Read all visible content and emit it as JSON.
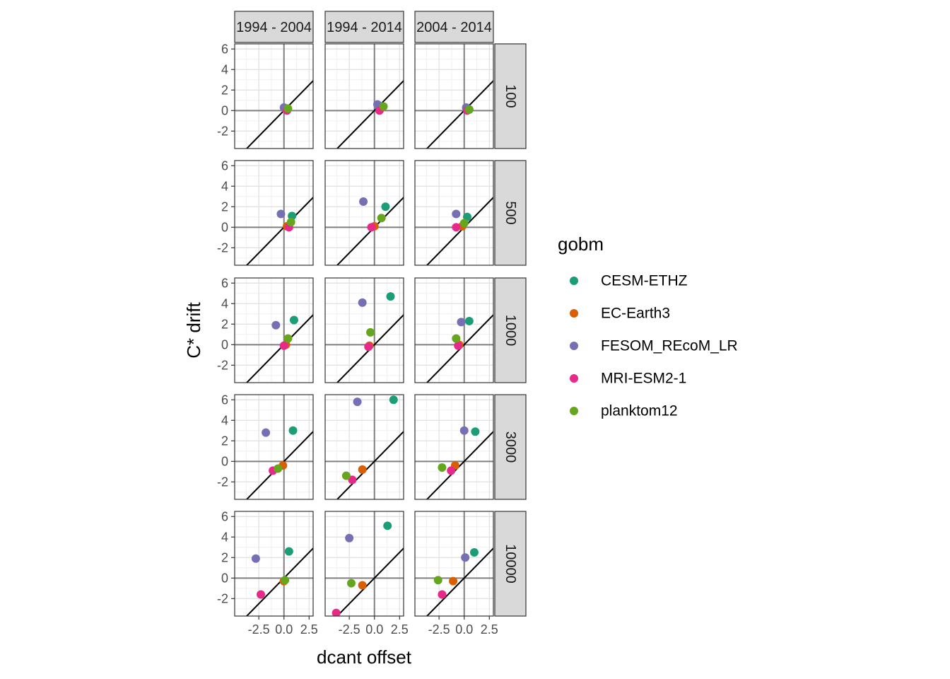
{
  "chart_data": {
    "type": "scatter",
    "xlabel": "dcant offset",
    "ylabel": "C* drift",
    "x_ticks": [
      -2.5,
      0.0,
      2.5
    ],
    "x_tick_labels": [
      "-2.5",
      "0.0",
      "2.5"
    ],
    "y_ticks": [
      -2,
      0,
      2,
      4,
      6
    ],
    "y_tick_labels": [
      "-2",
      "0",
      "2",
      "4",
      "6"
    ],
    "xlim": [
      -4.9,
      2.9
    ],
    "ylim": [
      -3.7,
      6.5
    ],
    "facet_columns": [
      "1994 - 2004",
      "1994 - 2014",
      "2004 - 2014"
    ],
    "facet_rows": [
      "100",
      "500",
      "1000",
      "3000",
      "10000"
    ],
    "reference_lines": [
      "x = 0",
      "y = 0",
      "y = x"
    ],
    "grid": true,
    "legend_position": "right",
    "legend_title": "gobm",
    "series": [
      {
        "name": "CESM-ETHZ",
        "color": "#1B9E77"
      },
      {
        "name": "EC-Earth3",
        "color": "#D95F02"
      },
      {
        "name": "FESOM_REcoM_LR",
        "color": "#7570B3"
      },
      {
        "name": "MRI-ESM2-1",
        "color": "#E7298A"
      },
      {
        "name": "planktom12",
        "color": "#66A61E"
      }
    ],
    "points": [
      {
        "row": 0,
        "col": 0,
        "series": "CESM-ETHZ",
        "x": 0.3,
        "y": 0.2
      },
      {
        "row": 0,
        "col": 0,
        "series": "EC-Earth3",
        "x": 0.2,
        "y": 0.1
      },
      {
        "row": 0,
        "col": 0,
        "series": "FESOM_REcoM_LR",
        "x": 0.0,
        "y": 0.3
      },
      {
        "row": 0,
        "col": 0,
        "series": "MRI-ESM2-1",
        "x": 0.3,
        "y": 0.0
      },
      {
        "row": 0,
        "col": 0,
        "series": "planktom12",
        "x": 0.4,
        "y": 0.2
      },
      {
        "row": 0,
        "col": 1,
        "series": "CESM-ETHZ",
        "x": 0.8,
        "y": 0.4
      },
      {
        "row": 0,
        "col": 1,
        "series": "EC-Earth3",
        "x": 0.6,
        "y": 0.2
      },
      {
        "row": 0,
        "col": 1,
        "series": "FESOM_REcoM_LR",
        "x": 0.3,
        "y": 0.6
      },
      {
        "row": 0,
        "col": 1,
        "series": "MRI-ESM2-1",
        "x": 0.5,
        "y": 0.0
      },
      {
        "row": 0,
        "col": 1,
        "series": "planktom12",
        "x": 0.9,
        "y": 0.4
      },
      {
        "row": 0,
        "col": 2,
        "series": "CESM-ETHZ",
        "x": 0.5,
        "y": 0.1
      },
      {
        "row": 0,
        "col": 2,
        "series": "EC-Earth3",
        "x": 0.3,
        "y": 0.1
      },
      {
        "row": 0,
        "col": 2,
        "series": "FESOM_REcoM_LR",
        "x": 0.2,
        "y": 0.3
      },
      {
        "row": 0,
        "col": 2,
        "series": "MRI-ESM2-1",
        "x": 0.3,
        "y": 0.0
      },
      {
        "row": 0,
        "col": 2,
        "series": "planktom12",
        "x": 0.5,
        "y": 0.1
      },
      {
        "row": 1,
        "col": 0,
        "series": "CESM-ETHZ",
        "x": 0.8,
        "y": 1.1
      },
      {
        "row": 1,
        "col": 0,
        "series": "EC-Earth3",
        "x": 0.3,
        "y": 0.1
      },
      {
        "row": 1,
        "col": 0,
        "series": "FESOM_REcoM_LR",
        "x": -0.3,
        "y": 1.3
      },
      {
        "row": 1,
        "col": 0,
        "series": "MRI-ESM2-1",
        "x": 0.5,
        "y": 0.0
      },
      {
        "row": 1,
        "col": 0,
        "series": "planktom12",
        "x": 0.7,
        "y": 0.5
      },
      {
        "row": 1,
        "col": 1,
        "series": "CESM-ETHZ",
        "x": 1.1,
        "y": 2.0
      },
      {
        "row": 1,
        "col": 1,
        "series": "EC-Earth3",
        "x": 0.0,
        "y": 0.1
      },
      {
        "row": 1,
        "col": 1,
        "series": "FESOM_REcoM_LR",
        "x": -1.1,
        "y": 2.5
      },
      {
        "row": 1,
        "col": 1,
        "series": "MRI-ESM2-1",
        "x": -0.3,
        "y": 0.0
      },
      {
        "row": 1,
        "col": 1,
        "series": "planktom12",
        "x": 0.7,
        "y": 0.9
      },
      {
        "row": 1,
        "col": 2,
        "series": "CESM-ETHZ",
        "x": 0.3,
        "y": 1.0
      },
      {
        "row": 1,
        "col": 2,
        "series": "EC-Earth3",
        "x": -0.2,
        "y": 0.1
      },
      {
        "row": 1,
        "col": 2,
        "series": "FESOM_REcoM_LR",
        "x": -0.8,
        "y": 1.3
      },
      {
        "row": 1,
        "col": 2,
        "series": "MRI-ESM2-1",
        "x": -0.8,
        "y": 0.0
      },
      {
        "row": 1,
        "col": 2,
        "series": "planktom12",
        "x": 0.0,
        "y": 0.4
      },
      {
        "row": 2,
        "col": 0,
        "series": "CESM-ETHZ",
        "x": 1.0,
        "y": 2.4
      },
      {
        "row": 2,
        "col": 0,
        "series": "EC-Earth3",
        "x": 0.2,
        "y": 0.0
      },
      {
        "row": 2,
        "col": 0,
        "series": "FESOM_REcoM_LR",
        "x": -0.8,
        "y": 1.9
      },
      {
        "row": 2,
        "col": 0,
        "series": "MRI-ESM2-1",
        "x": 0.0,
        "y": -0.1
      },
      {
        "row": 2,
        "col": 0,
        "series": "planktom12",
        "x": 0.4,
        "y": 0.6
      },
      {
        "row": 2,
        "col": 1,
        "series": "CESM-ETHZ",
        "x": 1.6,
        "y": 4.7
      },
      {
        "row": 2,
        "col": 1,
        "series": "EC-Earth3",
        "x": -0.5,
        "y": -0.1
      },
      {
        "row": 2,
        "col": 1,
        "series": "FESOM_REcoM_LR",
        "x": -1.2,
        "y": 4.1
      },
      {
        "row": 2,
        "col": 1,
        "series": "MRI-ESM2-1",
        "x": -0.6,
        "y": -0.2
      },
      {
        "row": 2,
        "col": 1,
        "series": "planktom12",
        "x": -0.4,
        "y": 1.2
      },
      {
        "row": 2,
        "col": 2,
        "series": "CESM-ETHZ",
        "x": 0.5,
        "y": 2.3
      },
      {
        "row": 2,
        "col": 2,
        "series": "EC-Earth3",
        "x": -0.5,
        "y": 0.0
      },
      {
        "row": 2,
        "col": 2,
        "series": "FESOM_REcoM_LR",
        "x": -0.3,
        "y": 2.2
      },
      {
        "row": 2,
        "col": 2,
        "series": "MRI-ESM2-1",
        "x": -0.6,
        "y": -0.1
      },
      {
        "row": 2,
        "col": 2,
        "series": "planktom12",
        "x": -0.8,
        "y": 0.6
      },
      {
        "row": 3,
        "col": 0,
        "series": "CESM-ETHZ",
        "x": 0.9,
        "y": 3.0
      },
      {
        "row": 3,
        "col": 0,
        "series": "EC-Earth3",
        "x": -0.1,
        "y": -0.4
      },
      {
        "row": 3,
        "col": 0,
        "series": "FESOM_REcoM_LR",
        "x": -1.8,
        "y": 2.8
      },
      {
        "row": 3,
        "col": 0,
        "series": "MRI-ESM2-1",
        "x": -1.1,
        "y": -0.9
      },
      {
        "row": 3,
        "col": 0,
        "series": "planktom12",
        "x": -0.6,
        "y": -0.7
      },
      {
        "row": 3,
        "col": 1,
        "series": "CESM-ETHZ",
        "x": 1.9,
        "y": 6.0
      },
      {
        "row": 3,
        "col": 1,
        "series": "EC-Earth3",
        "x": -1.2,
        "y": -0.8
      },
      {
        "row": 3,
        "col": 1,
        "series": "FESOM_REcoM_LR",
        "x": -1.7,
        "y": 5.8
      },
      {
        "row": 3,
        "col": 1,
        "series": "MRI-ESM2-1",
        "x": -2.2,
        "y": -1.8
      },
      {
        "row": 3,
        "col": 1,
        "series": "planktom12",
        "x": -2.8,
        "y": -1.4
      },
      {
        "row": 3,
        "col": 2,
        "series": "CESM-ETHZ",
        "x": 1.1,
        "y": 2.9
      },
      {
        "row": 3,
        "col": 2,
        "series": "EC-Earth3",
        "x": -0.9,
        "y": -0.4
      },
      {
        "row": 3,
        "col": 2,
        "series": "FESOM_REcoM_LR",
        "x": 0.0,
        "y": 3.0
      },
      {
        "row": 3,
        "col": 2,
        "series": "MRI-ESM2-1",
        "x": -1.3,
        "y": -0.9
      },
      {
        "row": 3,
        "col": 2,
        "series": "planktom12",
        "x": -2.2,
        "y": -0.6
      },
      {
        "row": 4,
        "col": 0,
        "series": "CESM-ETHZ",
        "x": 0.5,
        "y": 2.6
      },
      {
        "row": 4,
        "col": 0,
        "series": "EC-Earth3",
        "x": 0.0,
        "y": -0.3
      },
      {
        "row": 4,
        "col": 0,
        "series": "FESOM_REcoM_LR",
        "x": -2.8,
        "y": 1.9
      },
      {
        "row": 4,
        "col": 0,
        "series": "MRI-ESM2-1",
        "x": -2.3,
        "y": -1.6
      },
      {
        "row": 4,
        "col": 0,
        "series": "planktom12",
        "x": 0.1,
        "y": -0.2
      },
      {
        "row": 4,
        "col": 1,
        "series": "CESM-ETHZ",
        "x": 1.3,
        "y": 5.1
      },
      {
        "row": 4,
        "col": 1,
        "series": "EC-Earth3",
        "x": -1.2,
        "y": -0.7
      },
      {
        "row": 4,
        "col": 1,
        "series": "FESOM_REcoM_LR",
        "x": -2.5,
        "y": 3.9
      },
      {
        "row": 4,
        "col": 1,
        "series": "MRI-ESM2-1",
        "x": -3.8,
        "y": -3.4
      },
      {
        "row": 4,
        "col": 1,
        "series": "planktom12",
        "x": -2.3,
        "y": -0.5
      },
      {
        "row": 4,
        "col": 2,
        "series": "CESM-ETHZ",
        "x": 1.0,
        "y": 2.5
      },
      {
        "row": 4,
        "col": 2,
        "series": "EC-Earth3",
        "x": -1.1,
        "y": -0.3
      },
      {
        "row": 4,
        "col": 2,
        "series": "FESOM_REcoM_LR",
        "x": 0.1,
        "y": 2.0
      },
      {
        "row": 4,
        "col": 2,
        "series": "MRI-ESM2-1",
        "x": -2.2,
        "y": -1.6
      },
      {
        "row": 4,
        "col": 2,
        "series": "planktom12",
        "x": -2.6,
        "y": -0.2
      }
    ]
  }
}
